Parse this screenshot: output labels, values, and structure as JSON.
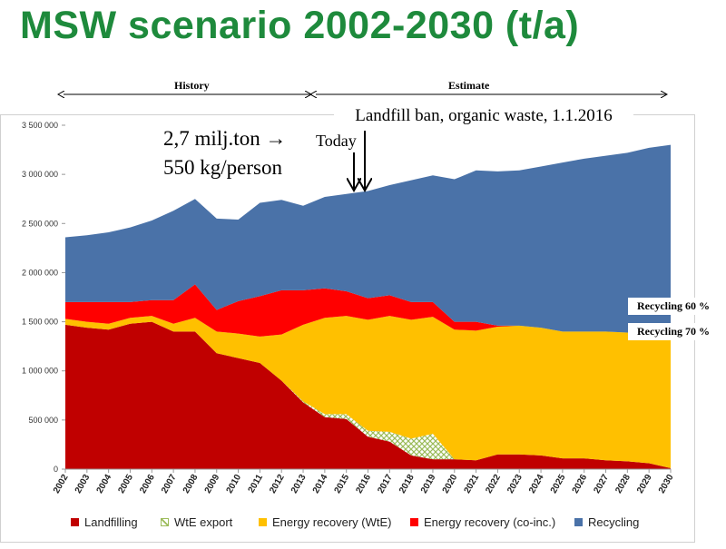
{
  "title": "MSW scenario 2002-2030 (t/a)",
  "periods": {
    "history": "History",
    "estimate": "Estimate"
  },
  "annotations": {
    "landfill_ban": "Landfill ban, organic waste, 1.1.2016",
    "today": "Today",
    "quantity_line1": "2,7 milj.ton",
    "quantity_line2": "550 kg/person",
    "arrow_glyph": "→",
    "recycling_60": "Recycling 60 %",
    "recycling_70": "Recycling 70 %"
  },
  "colors": {
    "title": "#1e8a3c",
    "landfilling": "#c00000",
    "wte_export": "#9bbb59",
    "energy_wte": "#ffc000",
    "energy_coinc": "#ff0000",
    "recycling": "#4a72a8"
  },
  "chart_data": {
    "type": "area",
    "stacked": true,
    "title": "MSW scenario 2002-2030 (t/a)",
    "xlabel": "",
    "ylabel": "",
    "ylim": [
      0,
      3500000
    ],
    "yticks": [
      "0",
      "500 000",
      "1 000 000",
      "1 500 000",
      "2 000 000",
      "2 500 000",
      "3 000 000",
      "3 500 000"
    ],
    "categories": [
      "2002",
      "2003",
      "2004",
      "2005",
      "2006",
      "2007",
      "2008",
      "2009",
      "2010",
      "2011",
      "2012",
      "2013",
      "2014",
      "2015",
      "2016",
      "2017",
      "2018",
      "2019",
      "2020",
      "2021",
      "2022",
      "2023",
      "2024",
      "2025",
      "2026",
      "2027",
      "2028",
      "2029",
      "2030"
    ],
    "legend_position": "bottom",
    "grid": false,
    "series": [
      {
        "name": "Landfilling",
        "color": "#c00000",
        "pattern": false,
        "values": [
          1470000,
          1440000,
          1420000,
          1480000,
          1500000,
          1400000,
          1400000,
          1180000,
          1130000,
          1080000,
          900000,
          680000,
          530000,
          510000,
          330000,
          280000,
          140000,
          100000,
          100000,
          90000,
          150000,
          150000,
          140000,
          110000,
          110000,
          90000,
          80000,
          60000,
          10000
        ]
      },
      {
        "name": "WtE export",
        "color": "#9bbb59",
        "pattern": true,
        "values": [
          0,
          0,
          0,
          0,
          0,
          0,
          0,
          0,
          0,
          0,
          0,
          10000,
          30000,
          50000,
          60000,
          100000,
          170000,
          260000,
          0,
          0,
          0,
          0,
          0,
          0,
          0,
          0,
          0,
          0,
          0
        ]
      },
      {
        "name": "Energy recovery (WtE)",
        "color": "#ffc000",
        "pattern": false,
        "values": [
          60000,
          60000,
          60000,
          60000,
          60000,
          80000,
          140000,
          220000,
          250000,
          270000,
          470000,
          780000,
          980000,
          1000000,
          1130000,
          1180000,
          1210000,
          1190000,
          1320000,
          1320000,
          1300000,
          1310000,
          1300000,
          1290000,
          1290000,
          1310000,
          1310000,
          1320000,
          1360000
        ]
      },
      {
        "name": "Energy recovery (co-inc.)",
        "color": "#ff0000",
        "pattern": false,
        "values": [
          170000,
          200000,
          220000,
          160000,
          160000,
          240000,
          340000,
          220000,
          330000,
          410000,
          450000,
          350000,
          300000,
          250000,
          220000,
          210000,
          180000,
          150000,
          80000,
          90000,
          10000,
          0,
          0,
          0,
          0,
          0,
          0,
          0,
          0
        ]
      },
      {
        "name": "Recycling",
        "color": "#4a72a8",
        "pattern": false,
        "values": [
          660000,
          680000,
          710000,
          760000,
          810000,
          910000,
          870000,
          930000,
          830000,
          950000,
          920000,
          860000,
          930000,
          990000,
          1090000,
          1120000,
          1240000,
          1290000,
          1450000,
          1540000,
          1570000,
          1580000,
          1640000,
          1720000,
          1760000,
          1790000,
          1830000,
          1890000,
          1930000
        ]
      }
    ]
  }
}
